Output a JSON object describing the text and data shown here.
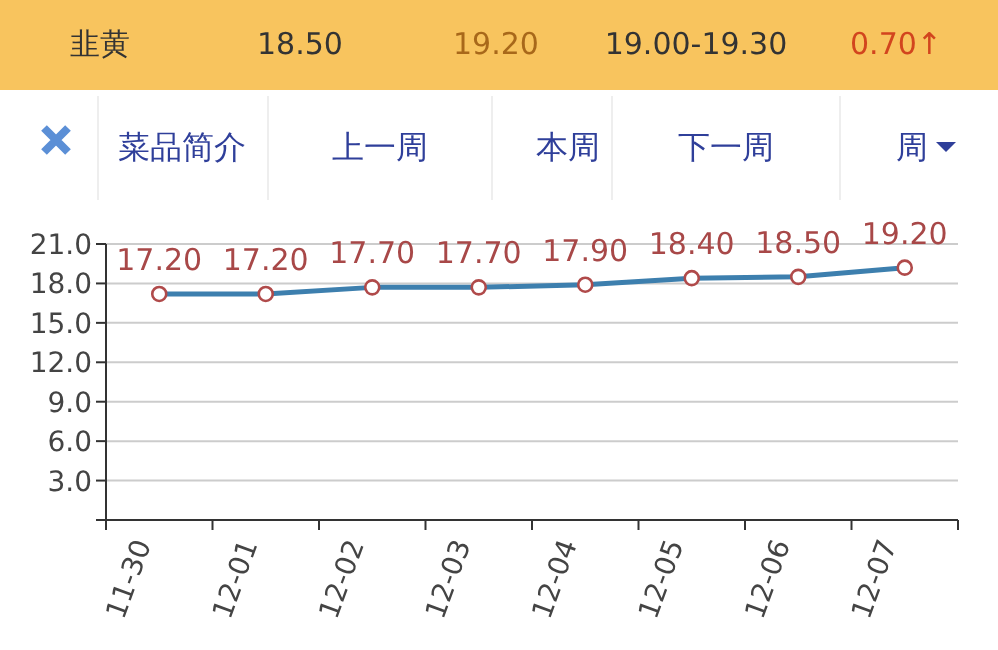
{
  "chart_data": {
    "type": "line",
    "categories": [
      "11-30",
      "12-01",
      "12-02",
      "12-03",
      "12-04",
      "12-05",
      "12-06",
      "12-07"
    ],
    "series": [
      {
        "color": "#3d7fae",
        "values": [
          17.2,
          17.2,
          17.7,
          17.7,
          17.9,
          18.4,
          18.5,
          19.2
        ],
        "value_labels": [
          "17.20",
          "17.20",
          "17.70",
          "17.70",
          "17.90",
          "18.40",
          "18.50",
          "19.20"
        ]
      }
    ],
    "ylim": [
      0,
      21
    ],
    "yticks": [
      {
        "value": 0,
        "label": null
      },
      {
        "value": 3,
        "label": "3.0"
      },
      {
        "value": 6,
        "label": "6.0"
      },
      {
        "value": 9,
        "label": "9.0"
      },
      {
        "value": 12,
        "label": "12.0"
      },
      {
        "value": 15,
        "label": "15.0"
      },
      {
        "value": 18,
        "label": "18.0"
      },
      {
        "value": 21,
        "label": "21.0"
      }
    ],
    "grid": "y",
    "marker": "circle",
    "line_style": "solid",
    "annotations": [
      "韭黄",
      "18.50",
      "19.20",
      "19.00-19.30",
      "0.70↑",
      "菜品简介",
      "上一周",
      "本周",
      "下一周",
      "周"
    ]
  }
}
